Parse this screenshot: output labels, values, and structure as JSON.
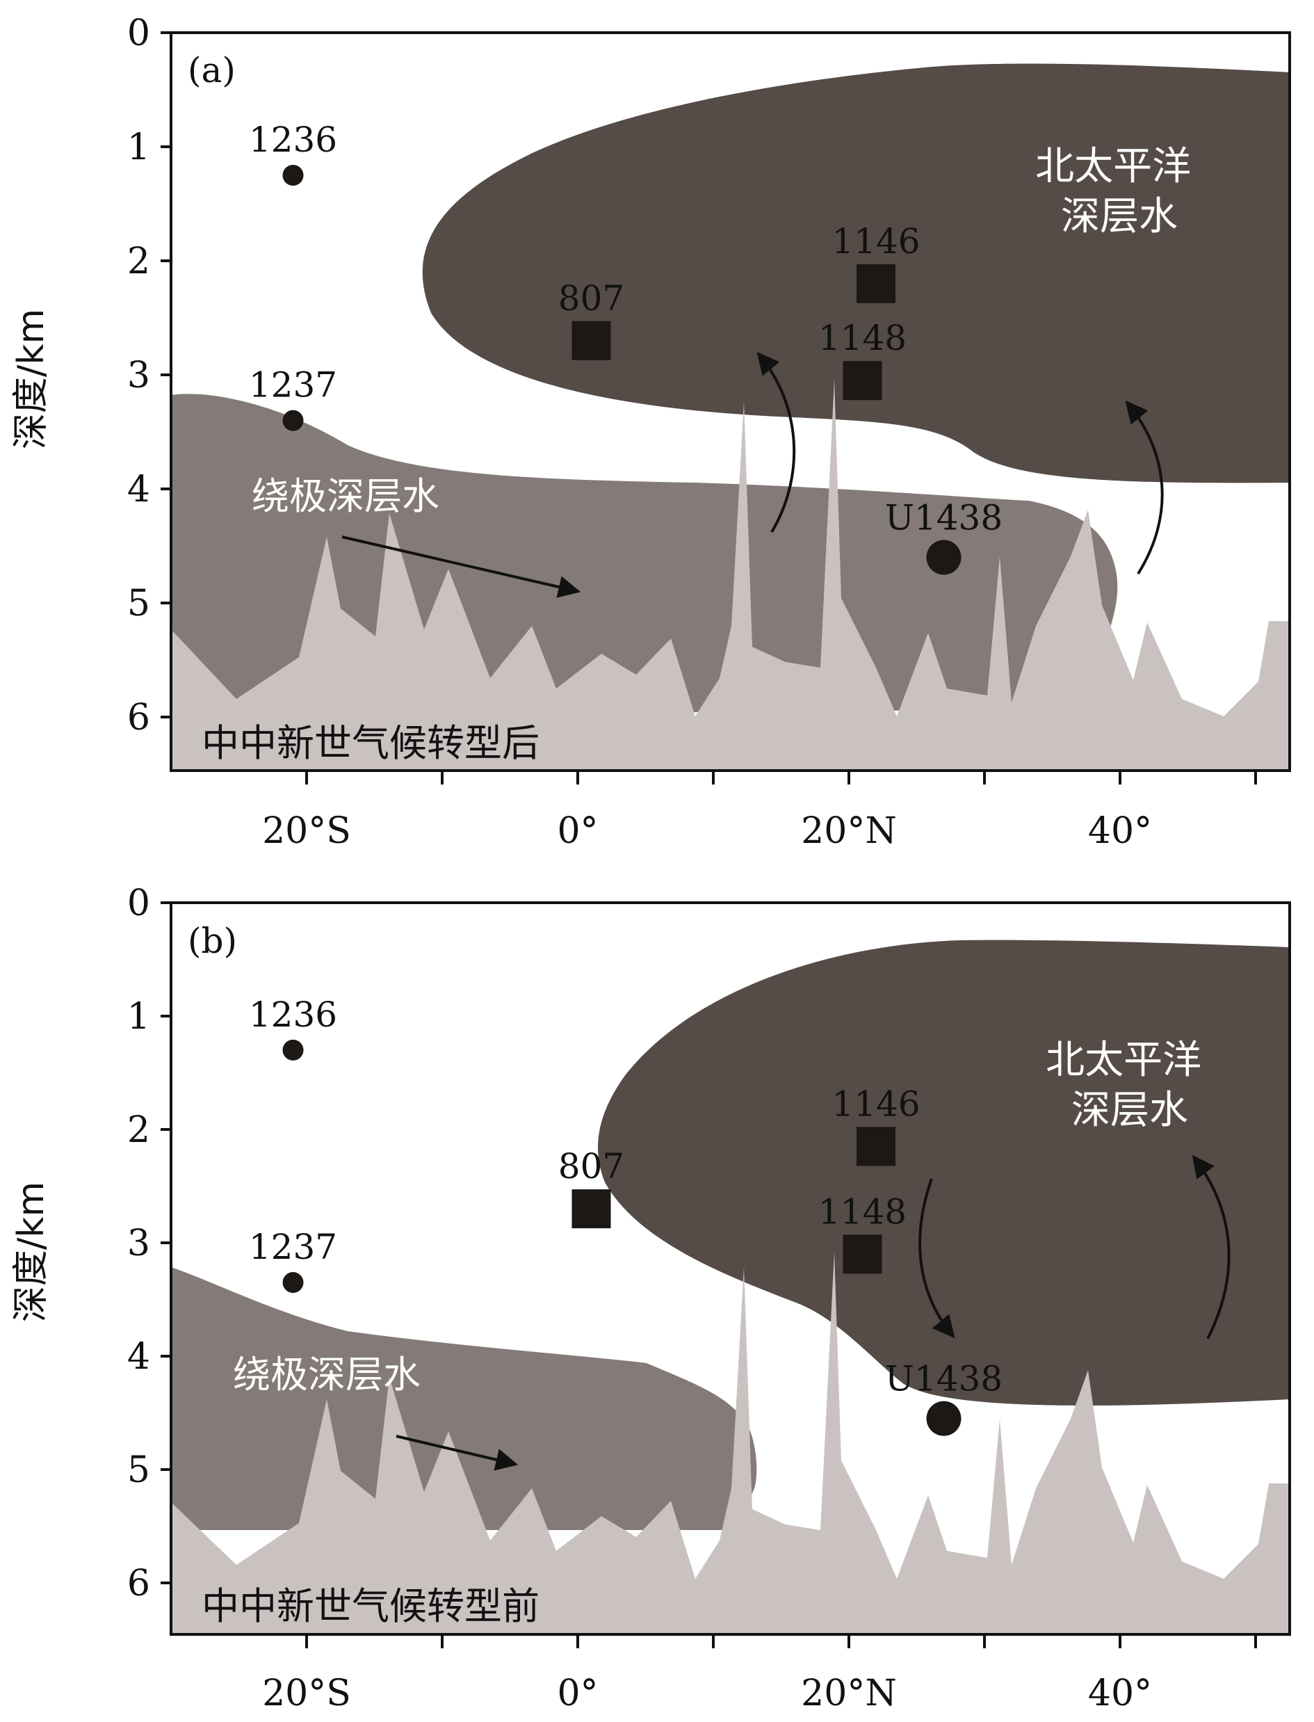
{
  "colors": {
    "npdw": "#554b47",
    "cdw": "#847a77",
    "seafloor": "#c9c2c0",
    "marker": "#1b1816",
    "frame": "#111111",
    "white_text": "#ffffff"
  },
  "axes": {
    "ylabel": "深度/km",
    "y_ticks": [
      "0",
      "1",
      "2",
      "3",
      "4",
      "5",
      "6"
    ],
    "x_ticks": [
      "20°S",
      "0°",
      "20°N",
      "40°"
    ]
  },
  "panels": [
    {
      "id": "a",
      "label": "(a)",
      "caption": "中中新世气候转型后",
      "water_masses": {
        "npdw": "北太平洋\n深层水",
        "cdw": "绕极深层水"
      },
      "sites": [
        {
          "name": "1236",
          "lat": -21,
          "depth_km": 1.25,
          "shape": "circle"
        },
        {
          "name": "1237",
          "lat": -21,
          "depth_km": 3.4,
          "shape": "circle"
        },
        {
          "name": "807",
          "lat": 1,
          "depth_km": 2.7,
          "shape": "square"
        },
        {
          "name": "1146",
          "lat": 22,
          "depth_km": 2.2,
          "shape": "square"
        },
        {
          "name": "1148",
          "lat": 21,
          "depth_km": 3.05,
          "shape": "square"
        },
        {
          "name": "U1438",
          "lat": 27,
          "depth_km": 4.6,
          "shape": "circle"
        }
      ]
    },
    {
      "id": "b",
      "label": "(b)",
      "caption": "中中新世气候转型前",
      "water_masses": {
        "npdw": "北太平洋\n深层水",
        "cdw": "绕极深层水"
      },
      "sites": [
        {
          "name": "1236",
          "lat": -21,
          "depth_km": 1.3,
          "shape": "circle"
        },
        {
          "name": "1237",
          "lat": -21,
          "depth_km": 3.35,
          "shape": "circle"
        },
        {
          "name": "807",
          "lat": 1,
          "depth_km": 2.7,
          "shape": "square"
        },
        {
          "name": "1146",
          "lat": 22,
          "depth_km": 2.15,
          "shape": "square"
        },
        {
          "name": "1148",
          "lat": 21,
          "depth_km": 3.1,
          "shape": "square"
        },
        {
          "name": "U1438",
          "lat": 27,
          "depth_km": 4.55,
          "shape": "circle"
        }
      ]
    }
  ]
}
